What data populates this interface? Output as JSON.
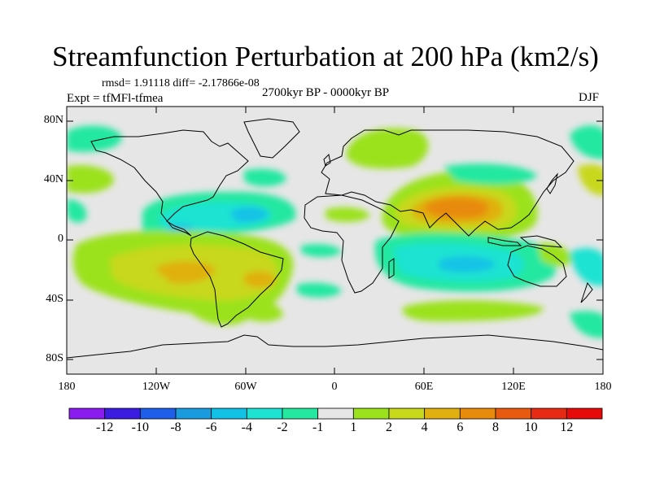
{
  "title": "Streamfunction Perturbation at 200 hPa (km2/s)",
  "stats": "rmsd= 1.91118  diff= -2.17866e-08",
  "experiment": "Expt = tfMFl-tfmea",
  "period": "2700kyr BP - 0000kyr BP",
  "season": "DJF",
  "map": {
    "lon_range": [
      -180,
      180
    ],
    "lat_range": [
      -90,
      90
    ],
    "lat_ticks": [
      "80N",
      "40N",
      "0",
      "40S",
      "80S"
    ],
    "lon_ticks": [
      "180",
      "120W",
      "60W",
      "0",
      "60E",
      "120E",
      "180"
    ],
    "background_color": "#e6e6e6",
    "coastline_color": "#000000"
  },
  "colorbar": {
    "labels": [
      "-12",
      "-10",
      "-8",
      "-6",
      "-4",
      "-2",
      "-1",
      "1",
      "2",
      "4",
      "6",
      "8",
      "10",
      "12"
    ],
    "colors": [
      "#8b1cf0",
      "#3a1de0",
      "#1f5ee8",
      "#1a9be0",
      "#12c2e6",
      "#1ee3d2",
      "#24e8a0",
      "#e6e6e6",
      "#9be21c",
      "#c8d81a",
      "#e0b010",
      "#e88a0c",
      "#e85a10",
      "#e62a14",
      "#e60a0a"
    ]
  }
}
